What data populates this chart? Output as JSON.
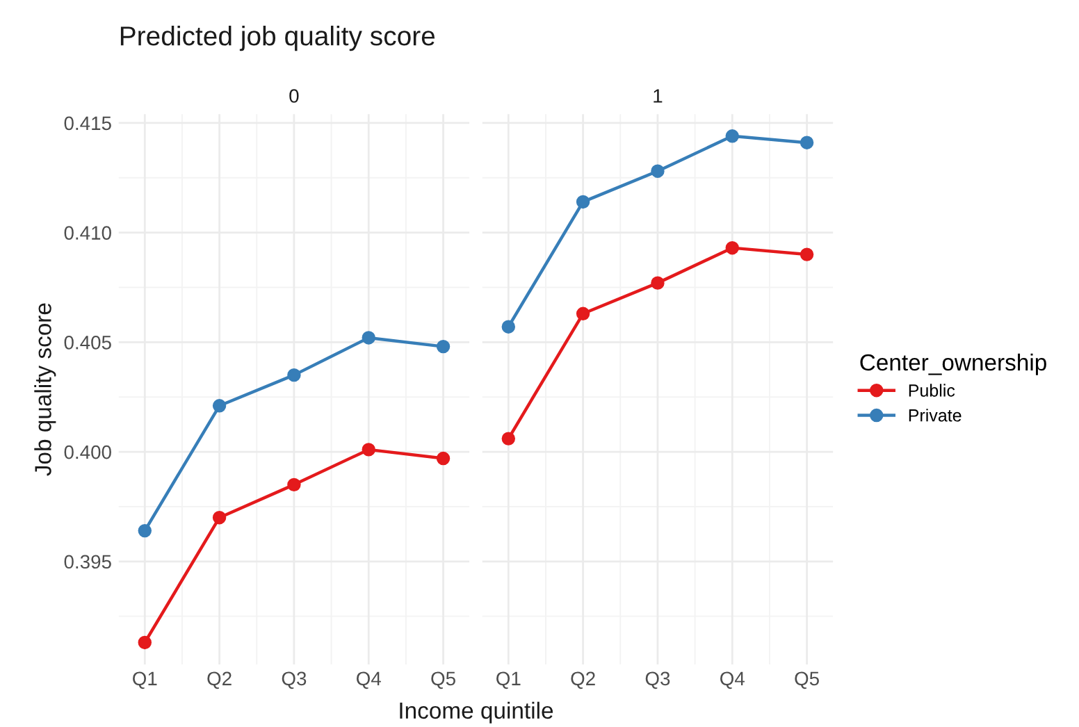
{
  "chart_data": [
    {
      "type": "line",
      "title": "Predicted job quality score",
      "subtitle": "0",
      "xlabel": "Income quintile",
      "ylabel": "Job quality score",
      "categories": [
        "Q1",
        "Q2",
        "Q3",
        "Q4",
        "Q5"
      ],
      "series": [
        {
          "color": "#e41a1c",
          "values": [
            0.3913,
            0.397,
            0.3985,
            0.4001,
            0.3997
          ]
        },
        {
          "color": "#377eb8",
          "values": [
            0.3964,
            0.4021,
            0.4035,
            0.4052,
            0.4048
          ]
        }
      ],
      "ylim": [
        0.3903,
        0.4154
      ],
      "yticks": [
        0.395,
        {
          "value": 0.4,
          "label": "0.400"
        },
        0.405,
        {
          "value": 0.41,
          "label": "0.410"
        },
        0.415
      ],
      "grid": true,
      "marker": "circle",
      "line_style": "solid"
    },
    {
      "type": "line",
      "subtitle": "1",
      "categories": [
        "Q1",
        "Q2",
        "Q3",
        "Q4",
        "Q5"
      ],
      "legend_title": "Center_ownership",
      "series": [
        {
          "name": "Public",
          "color": "#e41a1c",
          "values": [
            0.4006,
            0.4063,
            0.4077,
            0.4093,
            0.409
          ]
        },
        {
          "name": "Private",
          "color": "#377eb8",
          "values": [
            0.4057,
            0.4114,
            0.4128,
            0.4144,
            0.4141
          ]
        }
      ],
      "ylim": [
        0.3903,
        0.4154
      ],
      "yticks": [
        0.395,
        0.4,
        0.405,
        0.41,
        0.415
      ],
      "grid": true,
      "marker": "circle",
      "line_style": "solid",
      "legend": "right",
      "tick_labels": "x"
    }
  ]
}
